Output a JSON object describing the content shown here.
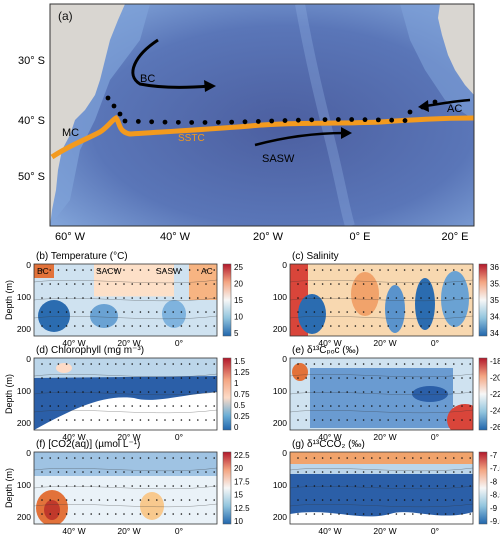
{
  "map": {
    "panel_label": "(a)",
    "lat_labels": [
      "30° S",
      "40° S",
      "50° S"
    ],
    "lon_labels": [
      "60° W",
      "40° W",
      "20° W",
      "0° E",
      "20° E"
    ],
    "currents": {
      "bc": "BC",
      "mc": "MC",
      "sstc": "SSTC",
      "sasw": "SASW",
      "ac": "AC"
    },
    "colors": {
      "ocean_deep": "#3e4f8f",
      "ocean_shallow": "#7d9fd6",
      "land": "#d9d6d1",
      "front": "#f39a1e",
      "arrow": "#000000"
    },
    "station_count": 28
  },
  "panels": [
    {
      "id": "b",
      "title": "(b) Temperature (°C)",
      "annotations": [
        "BC",
        "SACW",
        "SASW",
        "AC"
      ],
      "colorbar": {
        "ticks": [
          "25",
          "20",
          "15",
          "10",
          "5"
        ],
        "colors": [
          "#b2182b",
          "#f4a582",
          "#fddbc7",
          "#92c5de",
          "#2166ac"
        ]
      },
      "y_ticks": [
        "0",
        "100",
        "200"
      ],
      "x_ticks": [
        "40° W",
        "20° W",
        "0°"
      ],
      "ylabel": "Depth (m)"
    },
    {
      "id": "c",
      "title": "(c) Salinity",
      "annotations": [],
      "colorbar": {
        "ticks": [
          "36",
          "35.5",
          "35",
          "34.5",
          "34"
        ],
        "colors": [
          "#b2182b",
          "#f4a582",
          "#fddbc7",
          "#92c5de",
          "#2166ac"
        ]
      },
      "y_ticks": [
        "0",
        "100",
        "200"
      ],
      "x_ticks": [
        "40° W",
        "20° W",
        "0°"
      ],
      "ylabel": ""
    },
    {
      "id": "d",
      "title": "(d) Chlorophyll (mg m⁻³)",
      "annotations": [],
      "colorbar": {
        "ticks": [
          "1.5",
          "1.25",
          "1",
          "0.75",
          "0.5",
          "0.25",
          "0"
        ],
        "colors": [
          "#b2182b",
          "#f4a582",
          "#fddbc7",
          "#92c5de",
          "#2166ac"
        ]
      },
      "y_ticks": [
        "0",
        "100",
        "200"
      ],
      "x_ticks": [
        "40° W",
        "20° W",
        "0°"
      ],
      "ylabel": "Depth (m)"
    },
    {
      "id": "e",
      "title": "(e) δ¹³Cₚₒᴄ (‰)",
      "annotations": [],
      "colorbar": {
        "ticks": [
          "-18",
          "-20",
          "-22",
          "-24",
          "-26"
        ],
        "colors": [
          "#b2182b",
          "#f4a582",
          "#fddbc7",
          "#92c5de",
          "#2166ac"
        ]
      },
      "y_ticks": [
        "0",
        "100",
        "200"
      ],
      "x_ticks": [
        "40° W",
        "20° W",
        "0°"
      ],
      "ylabel": ""
    },
    {
      "id": "f",
      "title": "(f) [CO2(aq)] (µmol L⁻¹)",
      "annotations": [],
      "colorbar": {
        "ticks": [
          "22.5",
          "20",
          "17.5",
          "15",
          "12.5",
          "10"
        ],
        "colors": [
          "#b2182b",
          "#f4a582",
          "#fddbc7",
          "#92c5de",
          "#2166ac"
        ]
      },
      "y_ticks": [
        "0",
        "100",
        "200"
      ],
      "x_ticks": [
        "40° W",
        "20° W",
        "0°"
      ],
      "ylabel": "Depth (m)"
    },
    {
      "id": "g",
      "title": "(g) δ¹³CCO₂ (‰)",
      "annotations": [],
      "colorbar": {
        "ticks": [
          "-7",
          "-7.5",
          "-8",
          "-8.5",
          "-9",
          "-9.5"
        ],
        "colors": [
          "#b2182b",
          "#f4a582",
          "#fddbc7",
          "#92c5de",
          "#2166ac"
        ]
      },
      "y_ticks": [
        "0",
        "100",
        "200"
      ],
      "x_ticks": [
        "40° W",
        "20° W",
        "0°"
      ],
      "ylabel": ""
    }
  ]
}
